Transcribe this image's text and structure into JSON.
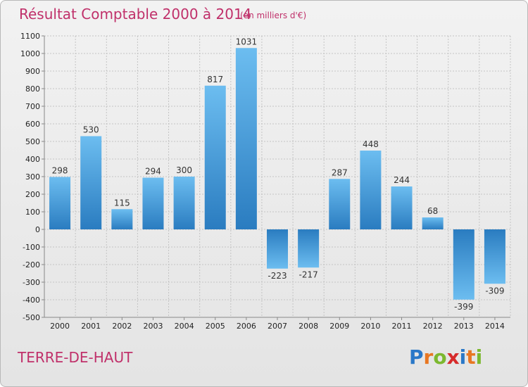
{
  "chart_data": {
    "type": "bar",
    "title": "Résultat Comptable 2000 à 2014",
    "subtitle": "(en milliers d'€)",
    "categories": [
      "2000",
      "2001",
      "2002",
      "2003",
      "2004",
      "2005",
      "2006",
      "2007",
      "2008",
      "2009",
      "2010",
      "2011",
      "2012",
      "2013",
      "2014"
    ],
    "values": [
      298,
      530,
      115,
      294,
      300,
      817,
      1031,
      -223,
      -217,
      287,
      448,
      244,
      68,
      -399,
      -309
    ],
    "ylim": [
      -500,
      1100
    ],
    "yticks": [
      -500,
      -400,
      -300,
      -200,
      -100,
      0,
      100,
      200,
      300,
      400,
      500,
      600,
      700,
      800,
      900,
      1000,
      1100
    ],
    "grid": true,
    "xlabel": "",
    "ylabel": ""
  },
  "footer": {
    "commune": "TERRE-DE-HAUT",
    "logo_letters": [
      "P",
      "r",
      "o",
      "x",
      "i",
      "t",
      "i"
    ],
    "logo_colors": [
      "#2a78c8",
      "#e87722",
      "#7cb82f",
      "#d62b2b",
      "#2a78c8",
      "#e87722",
      "#7cb82f"
    ]
  },
  "colors": {
    "bar_light": "#6cbdf0",
    "bar_dark": "#2a7cc0",
    "title": "#c0306a"
  }
}
